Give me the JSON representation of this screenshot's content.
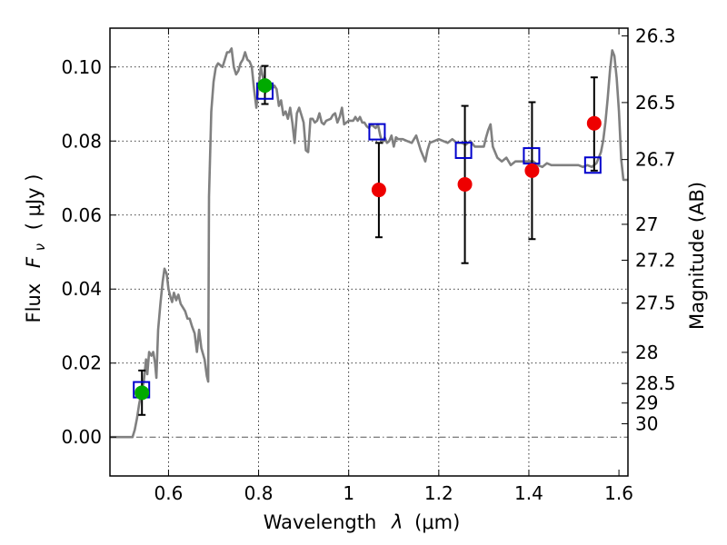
{
  "chart_data": {
    "type": "scatter",
    "title": "",
    "xlabel_prefix": "Wavelength",
    "xlabel_symbol": "λ",
    "xlabel_units": "(μm)",
    "ylabel_prefix": "Flux",
    "ylabel_symbol": "F",
    "ylabel_subscript": "ν",
    "ylabel_units": "( μJy )",
    "y2label": "Magnitude (AB)",
    "xlim": [
      0.47,
      1.62
    ],
    "ylim": [
      -0.0105,
      0.1105
    ],
    "grid": true,
    "grid_x": [
      0.6,
      0.8,
      1.0,
      1.2,
      1.4
    ],
    "grid_y": [
      0.02,
      0.04,
      0.06,
      0.08,
      0.1
    ],
    "x_ticks": [
      {
        "value": 0.6,
        "label": "0.6"
      },
      {
        "value": 0.8,
        "label": "0.8"
      },
      {
        "value": 1.0,
        "label": "1"
      },
      {
        "value": 1.2,
        "label": "1.2"
      },
      {
        "value": 1.4,
        "label": "1.4"
      },
      {
        "value": 1.6,
        "label": "1.6"
      }
    ],
    "y_ticks": [
      {
        "value": 0.0,
        "label": "0.00"
      },
      {
        "value": 0.02,
        "label": "0.02"
      },
      {
        "value": 0.04,
        "label": "0.04"
      },
      {
        "value": 0.06,
        "label": "0.06"
      },
      {
        "value": 0.08,
        "label": "0.08"
      },
      {
        "value": 0.1,
        "label": "0.10"
      }
    ],
    "y2_ticks": [
      {
        "flux": 0.1084,
        "label": "26.3"
      },
      {
        "flux": 0.0904,
        "label": "26.5"
      },
      {
        "flux": 0.075,
        "label": "26.7"
      },
      {
        "flux": 0.0575,
        "label": "27"
      },
      {
        "flux": 0.0478,
        "label": "27.2"
      },
      {
        "flux": 0.0362,
        "label": "27.5"
      },
      {
        "flux": 0.0229,
        "label": "28"
      },
      {
        "flux": 0.0145,
        "label": "28.5"
      },
      {
        "flux": 0.0092,
        "label": "29"
      },
      {
        "flux": 0.0036,
        "label": "30"
      }
    ],
    "zero_line": 0.0,
    "series": [
      {
        "name": "model_spectrum",
        "kind": "line",
        "color": "#808080",
        "points": [
          [
            0.47,
            0.0
          ],
          [
            0.52,
            0.0
          ],
          [
            0.525,
            0.002
          ],
          [
            0.53,
            0.005
          ],
          [
            0.535,
            0.009
          ],
          [
            0.54,
            0.012
          ],
          [
            0.545,
            0.015
          ],
          [
            0.55,
            0.021
          ],
          [
            0.553,
            0.017
          ],
          [
            0.557,
            0.023
          ],
          [
            0.562,
            0.022
          ],
          [
            0.566,
            0.023
          ],
          [
            0.57,
            0.02
          ],
          [
            0.573,
            0.016
          ],
          [
            0.577,
            0.029
          ],
          [
            0.582,
            0.036
          ],
          [
            0.587,
            0.042
          ],
          [
            0.591,
            0.0455
          ],
          [
            0.596,
            0.044
          ],
          [
            0.6,
            0.04
          ],
          [
            0.604,
            0.038
          ],
          [
            0.608,
            0.0365
          ],
          [
            0.612,
            0.039
          ],
          [
            0.617,
            0.037
          ],
          [
            0.622,
            0.0385
          ],
          [
            0.627,
            0.036
          ],
          [
            0.632,
            0.035
          ],
          [
            0.637,
            0.034
          ],
          [
            0.642,
            0.032
          ],
          [
            0.647,
            0.032
          ],
          [
            0.652,
            0.03
          ],
          [
            0.658,
            0.028
          ],
          [
            0.663,
            0.023
          ],
          [
            0.668,
            0.029
          ],
          [
            0.673,
            0.024
          ],
          [
            0.68,
            0.021
          ],
          [
            0.685,
            0.0165
          ],
          [
            0.688,
            0.015
          ],
          [
            0.69,
            0.065
          ],
          [
            0.695,
            0.088
          ],
          [
            0.7,
            0.096
          ],
          [
            0.705,
            0.1
          ],
          [
            0.71,
            0.101
          ],
          [
            0.715,
            0.1005
          ],
          [
            0.72,
            0.1
          ],
          [
            0.725,
            0.102
          ],
          [
            0.73,
            0.104
          ],
          [
            0.735,
            0.104
          ],
          [
            0.74,
            0.105
          ],
          [
            0.745,
            0.1
          ],
          [
            0.75,
            0.098
          ],
          [
            0.755,
            0.099
          ],
          [
            0.76,
            0.101
          ],
          [
            0.765,
            0.102
          ],
          [
            0.77,
            0.104
          ],
          [
            0.775,
            0.102
          ],
          [
            0.78,
            0.1015
          ],
          [
            0.785,
            0.1
          ],
          [
            0.79,
            0.094
          ],
          [
            0.795,
            0.089
          ],
          [
            0.8,
            0.095
          ],
          [
            0.805,
            0.1
          ],
          [
            0.81,
            0.097
          ],
          [
            0.815,
            0.093
          ],
          [
            0.82,
            0.096
          ],
          [
            0.825,
            0.096
          ],
          [
            0.83,
            0.094
          ],
          [
            0.835,
            0.095
          ],
          [
            0.84,
            0.094
          ],
          [
            0.845,
            0.0895
          ],
          [
            0.85,
            0.091
          ],
          [
            0.855,
            0.087
          ],
          [
            0.86,
            0.088
          ],
          [
            0.865,
            0.086
          ],
          [
            0.87,
            0.089
          ],
          [
            0.875,
            0.085
          ],
          [
            0.88,
            0.0795
          ],
          [
            0.885,
            0.0875
          ],
          [
            0.89,
            0.089
          ],
          [
            0.895,
            0.087
          ],
          [
            0.9,
            0.085
          ],
          [
            0.905,
            0.0775
          ],
          [
            0.91,
            0.077
          ],
          [
            0.915,
            0.086
          ],
          [
            0.92,
            0.086
          ],
          [
            0.925,
            0.085
          ],
          [
            0.93,
            0.0855
          ],
          [
            0.935,
            0.0875
          ],
          [
            0.94,
            0.085
          ],
          [
            0.945,
            0.0845
          ],
          [
            0.95,
            0.0855
          ],
          [
            0.96,
            0.086
          ],
          [
            0.965,
            0.087
          ],
          [
            0.97,
            0.0875
          ],
          [
            0.975,
            0.085
          ],
          [
            0.98,
            0.0865
          ],
          [
            0.985,
            0.089
          ],
          [
            0.99,
            0.0845
          ],
          [
            0.995,
            0.085
          ],
          [
            1.0,
            0.0855
          ],
          [
            1.005,
            0.0855
          ],
          [
            1.01,
            0.0855
          ],
          [
            1.015,
            0.0865
          ],
          [
            1.02,
            0.0855
          ],
          [
            1.025,
            0.0865
          ],
          [
            1.03,
            0.085
          ],
          [
            1.035,
            0.085
          ],
          [
            1.04,
            0.084
          ],
          [
            1.045,
            0.0835
          ],
          [
            1.05,
            0.0845
          ],
          [
            1.055,
            0.084
          ],
          [
            1.06,
            0.0835
          ],
          [
            1.065,
            0.0845
          ],
          [
            1.07,
            0.0815
          ],
          [
            1.075,
            0.0795
          ],
          [
            1.08,
            0.081
          ],
          [
            1.085,
            0.0795
          ],
          [
            1.09,
            0.08
          ],
          [
            1.095,
            0.0815
          ],
          [
            1.1,
            0.0785
          ],
          [
            1.105,
            0.081
          ],
          [
            1.11,
            0.0805
          ],
          [
            1.12,
            0.0805
          ],
          [
            1.13,
            0.08
          ],
          [
            1.14,
            0.0795
          ],
          [
            1.15,
            0.0815
          ],
          [
            1.16,
            0.0775
          ],
          [
            1.17,
            0.0745
          ],
          [
            1.175,
            0.0775
          ],
          [
            1.18,
            0.0795
          ],
          [
            1.19,
            0.08
          ],
          [
            1.2,
            0.0805
          ],
          [
            1.21,
            0.08
          ],
          [
            1.22,
            0.0795
          ],
          [
            1.23,
            0.0805
          ],
          [
            1.24,
            0.0795
          ],
          [
            1.25,
            0.0795
          ],
          [
            1.26,
            0.079
          ],
          [
            1.27,
            0.08
          ],
          [
            1.28,
            0.0785
          ],
          [
            1.29,
            0.0785
          ],
          [
            1.3,
            0.0785
          ],
          [
            1.305,
            0.081
          ],
          [
            1.31,
            0.083
          ],
          [
            1.315,
            0.0845
          ],
          [
            1.32,
            0.0785
          ],
          [
            1.325,
            0.077
          ],
          [
            1.33,
            0.0755
          ],
          [
            1.34,
            0.0745
          ],
          [
            1.35,
            0.0755
          ],
          [
            1.36,
            0.0735
          ],
          [
            1.37,
            0.0745
          ],
          [
            1.38,
            0.0745
          ],
          [
            1.39,
            0.0745
          ],
          [
            1.4,
            0.0745
          ],
          [
            1.41,
            0.0745
          ],
          [
            1.42,
            0.0735
          ],
          [
            1.43,
            0.073
          ],
          [
            1.44,
            0.074
          ],
          [
            1.45,
            0.0735
          ],
          [
            1.46,
            0.0735
          ],
          [
            1.47,
            0.0735
          ],
          [
            1.48,
            0.0735
          ],
          [
            1.49,
            0.0735
          ],
          [
            1.5,
            0.0735
          ],
          [
            1.51,
            0.0735
          ],
          [
            1.52,
            0.073
          ],
          [
            1.53,
            0.0735
          ],
          [
            1.54,
            0.073
          ],
          [
            1.55,
            0.074
          ],
          [
            1.56,
            0.077
          ],
          [
            1.565,
            0.08
          ],
          [
            1.57,
            0.085
          ],
          [
            1.575,
            0.0915
          ],
          [
            1.58,
            0.099
          ],
          [
            1.585,
            0.1045
          ],
          [
            1.59,
            0.103
          ],
          [
            1.595,
            0.097
          ],
          [
            1.6,
            0.088
          ],
          [
            1.605,
            0.075
          ],
          [
            1.61,
            0.0695
          ],
          [
            1.615,
            0.0695
          ],
          [
            1.62,
            0.0695
          ]
        ]
      },
      {
        "name": "synthetic_photometry",
        "kind": "open_square",
        "color": "#0000cc",
        "points": [
          [
            0.54,
            0.0128
          ],
          [
            0.814,
            0.0935
          ],
          [
            1.063,
            0.0825
          ],
          [
            1.255,
            0.0775
          ],
          [
            1.406,
            0.076
          ],
          [
            1.542,
            0.0735
          ]
        ]
      },
      {
        "name": "detections",
        "kind": "filled_circle",
        "color": "#00aa00",
        "points": [
          [
            0.541,
            0.012
          ],
          [
            0.814,
            0.095
          ]
        ]
      },
      {
        "name": "measurements",
        "kind": "filled_circle",
        "color": "#ee0000",
        "points": [
          [
            1.067,
            0.0668
          ],
          [
            1.258,
            0.0683
          ],
          [
            1.407,
            0.072
          ],
          [
            1.545,
            0.0848
          ]
        ]
      }
    ],
    "errorbars": [
      {
        "x": 0.541,
        "low": 0.006,
        "high": 0.018
      },
      {
        "x": 0.814,
        "low": 0.09,
        "high": 0.1003
      },
      {
        "x": 1.067,
        "low": 0.054,
        "high": 0.0795
      },
      {
        "x": 1.258,
        "low": 0.047,
        "high": 0.0895
      },
      {
        "x": 1.407,
        "low": 0.0535,
        "high": 0.0905
      },
      {
        "x": 1.545,
        "low": 0.072,
        "high": 0.0972
      }
    ]
  }
}
